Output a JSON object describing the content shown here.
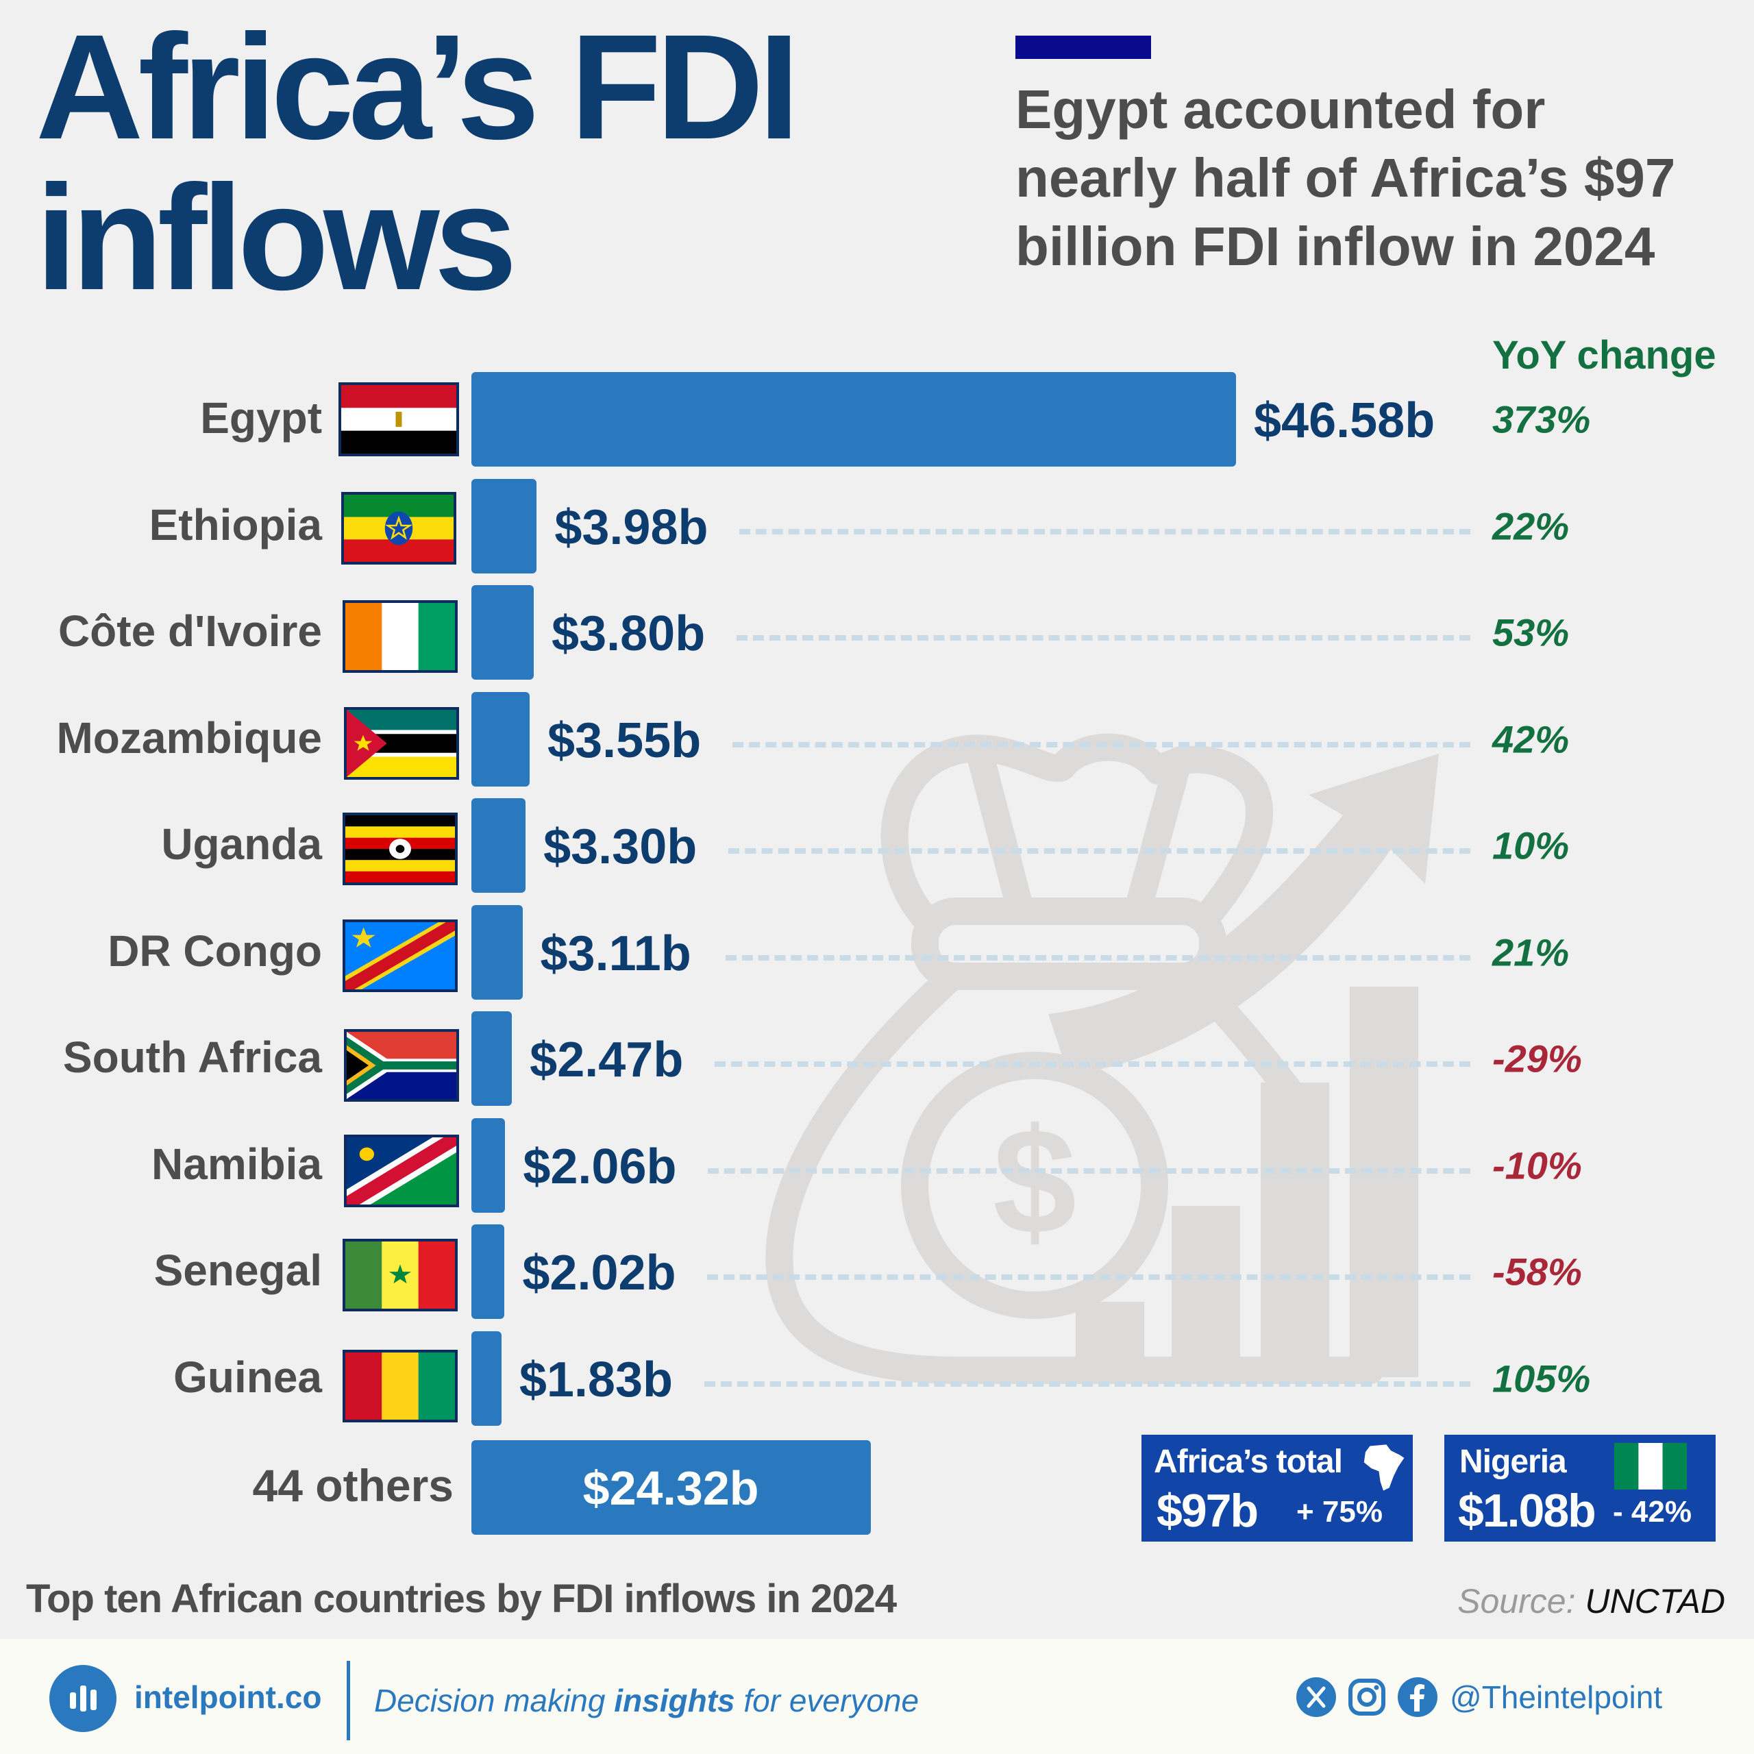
{
  "header": {
    "title_lines": [
      "Africa’s FDI",
      "inflows"
    ],
    "subtitle_lines": [
      "Egypt accounted for",
      "nearly half of Africa’s $97",
      "billion FDI inflow in 2024"
    ]
  },
  "chart_data": {
    "type": "bar",
    "orientation": "horizontal",
    "categories": [
      "Egypt",
      "Ethiopia",
      "Côte d'Ivoire",
      "Mozambique",
      "Uganda",
      "DR Congo",
      "South Africa",
      "Namibia",
      "Senegal",
      "Guinea"
    ],
    "values": [
      46.58,
      3.98,
      3.8,
      3.55,
      3.3,
      3.11,
      2.47,
      2.06,
      2.02,
      1.83
    ],
    "value_labels": [
      "$46.58b",
      "$3.98b",
      "$3.80b",
      "$3.55b",
      "$3.30b",
      "$3.11b",
      "$2.47b",
      "$2.06b",
      "$2.02b",
      "$1.83b"
    ],
    "yoy_header": "YoY change",
    "yoy_labels": [
      "373%",
      "22%",
      "53%",
      "42%",
      "10%",
      "21%",
      "-29%",
      "-10%",
      "-58%",
      "105%"
    ],
    "yoy_values": [
      373,
      22,
      53,
      42,
      10,
      21,
      -29,
      -10,
      -58,
      105
    ],
    "others": {
      "label": "44 others",
      "value": 24.32,
      "value_label": "$24.32b"
    },
    "caption": "Top ten African countries by FDI inflows in 2024",
    "unit": "billion USD",
    "colors": {
      "bar": "#2a78bd",
      "positive": "#137040",
      "negative": "#a8283a",
      "value_text": "#0d3c6e"
    }
  },
  "summary_boxes": {
    "africa": {
      "label": "Africa’s total",
      "value": "$97b",
      "change": "+ 75%",
      "icon": "africa-map-icon"
    },
    "nigeria": {
      "label": "Nigeria",
      "value": "$1.08b",
      "change": "- 42%",
      "icon": "nigeria-flag-icon"
    }
  },
  "source": {
    "prefix": "Source:",
    "name": "UNCTAD"
  },
  "footer": {
    "site": "intelpoint.co",
    "tagline_pre": "Decision making ",
    "tagline_bold": "insights",
    "tagline_post": " for everyone",
    "handle": "@Theintelpoint",
    "social_icons": [
      "x-icon",
      "instagram-icon",
      "facebook-icon"
    ]
  }
}
